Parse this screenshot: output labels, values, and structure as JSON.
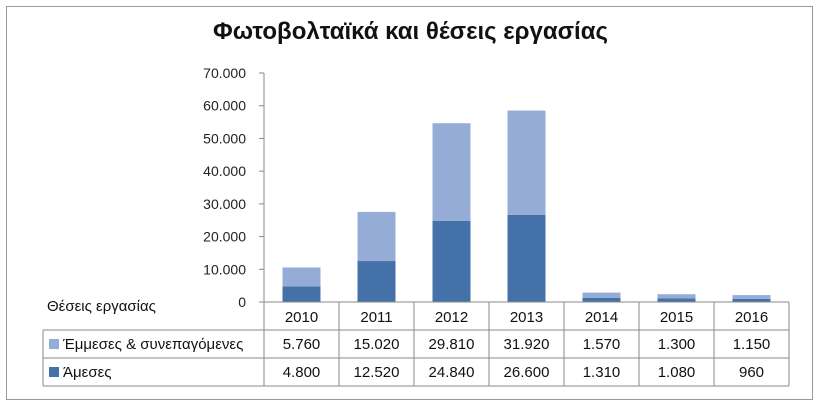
{
  "chart_data": {
    "type": "bar",
    "stacked": true,
    "title": "Φωτοβολταϊκά και θέσεις εργασίας",
    "row_header": "Θέσεις εργασίας",
    "categories": [
      "2010",
      "2011",
      "2012",
      "2013",
      "2014",
      "2015",
      "2016"
    ],
    "series": [
      {
        "name": "Άμεσες",
        "color": "#4472a8",
        "values": [
          4800,
          12520,
          24840,
          26600,
          1310,
          1080,
          960
        ],
        "labels": [
          "4.800",
          "12.520",
          "24.840",
          "26.600",
          "1.310",
          "1.080",
          "960"
        ]
      },
      {
        "name": "Έμμεσες & συνεπαγόμενες",
        "color": "#95acd6",
        "values": [
          5760,
          15020,
          29810,
          31920,
          1570,
          1300,
          1150
        ],
        "labels": [
          "5.760",
          "15.020",
          "29.810",
          "31.920",
          "1.570",
          "1.300",
          "1.150"
        ]
      }
    ],
    "yticks": [
      "0",
      "10.000",
      "20.000",
      "30.000",
      "40.000",
      "50.000",
      "60.000",
      "70.000"
    ],
    "ylim": [
      0,
      70000
    ],
    "legend": "data-table"
  }
}
